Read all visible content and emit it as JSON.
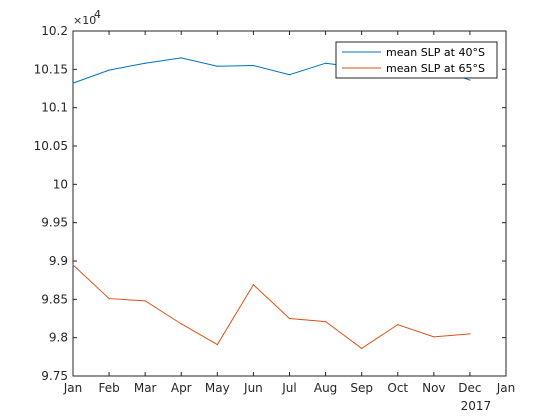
{
  "chart_data": {
    "type": "line",
    "x": [
      "Jan",
      "Feb",
      "Mar",
      "Apr",
      "May",
      "Jun",
      "Jul",
      "Aug",
      "Sep",
      "Oct",
      "Nov",
      "Dec"
    ],
    "x_ticks": [
      "Jan",
      "Feb",
      "Mar",
      "Apr",
      "May",
      "Jun",
      "Jul",
      "Aug",
      "Sep",
      "Oct",
      "Nov",
      "Dec",
      "Jan"
    ],
    "x_secondary_label": "2017",
    "y_ticks": [
      "9.75",
      "9.8",
      "9.85",
      "9.9",
      "9.95",
      "10",
      "10.05",
      "10.1",
      "10.15",
      "10.2"
    ],
    "y_exponent_base": "×10",
    "y_exponent_power": "4",
    "ylim": [
      97500,
      102000
    ],
    "series": [
      {
        "name": "mean SLP at 40°S",
        "color": "#0072bd",
        "values": [
          101320,
          101490,
          101580,
          101650,
          101540,
          101550,
          101430,
          101580,
          101520,
          101570,
          101510,
          101360
        ]
      },
      {
        "name": "mean SLP at 65°S",
        "color": "#d95319",
        "values": [
          98950,
          98510,
          98480,
          98180,
          97910,
          98690,
          98250,
          98210,
          97860,
          98170,
          98010,
          98050
        ]
      }
    ],
    "legend_position": "top-right",
    "grid": false,
    "title": "",
    "xlabel": "",
    "ylabel": ""
  }
}
